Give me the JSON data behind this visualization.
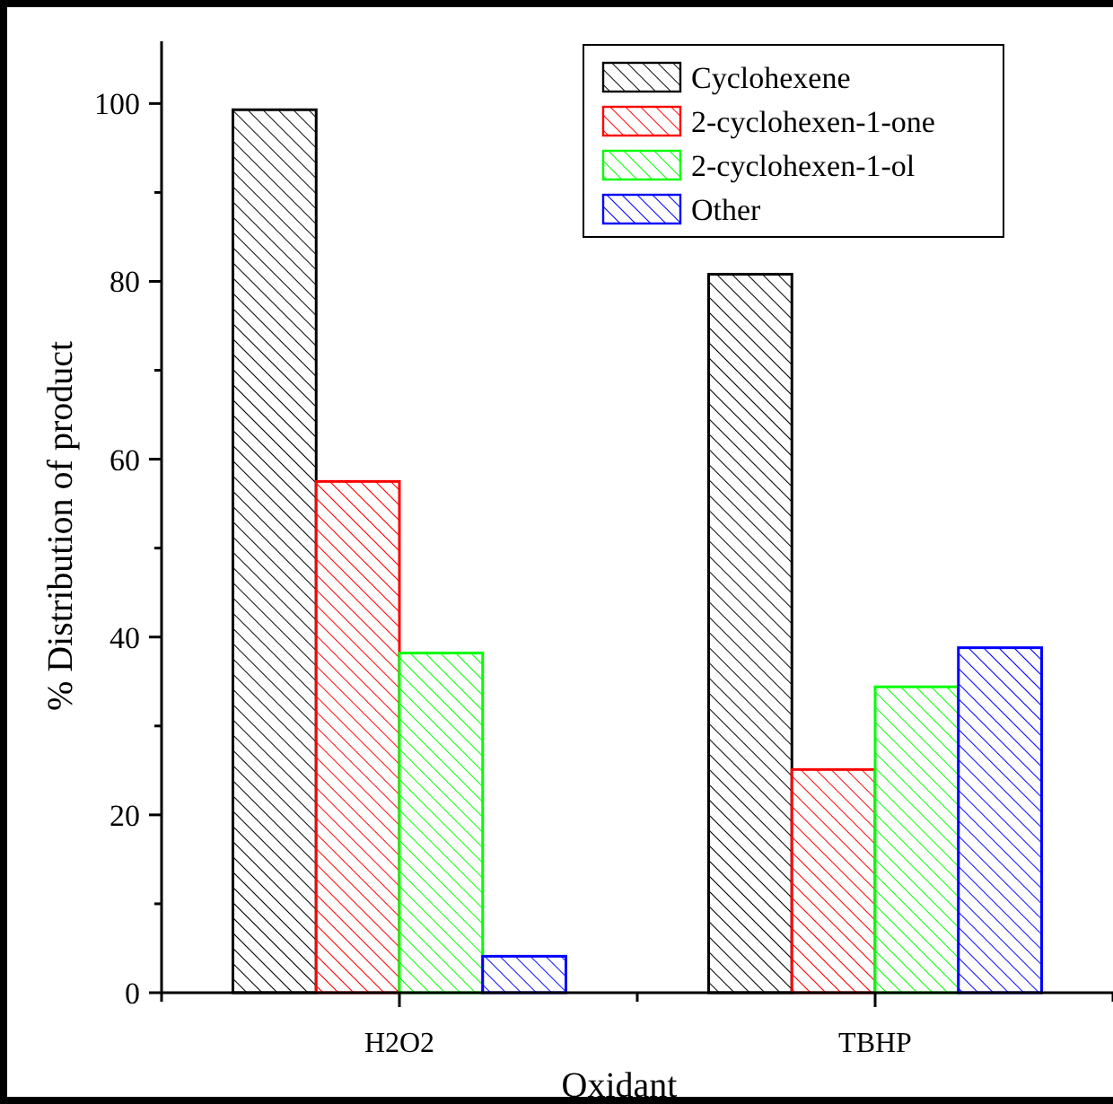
{
  "chart_data": {
    "type": "bar",
    "xlabel": "Oxidant",
    "ylabel": "% Distribution of product",
    "categories": [
      "H2O2",
      "TBHP"
    ],
    "series": [
      {
        "name": "Cyclohexene",
        "color": "#000000",
        "values": [
          99.3,
          80.8
        ]
      },
      {
        "name": "2-cyclohexen-1-one",
        "color": "#ff0000",
        "values": [
          57.5,
          25.1
        ]
      },
      {
        "name": "2-cyclohexen-1-ol",
        "color": "#00ff00",
        "values": [
          38.2,
          34.4
        ]
      },
      {
        "name": "Other",
        "color": "#0000ff",
        "values": [
          4.1,
          38.8
        ]
      }
    ],
    "ylim": [
      0,
      107
    ],
    "yticks": [
      0,
      {
        "value": 10,
        "label": null
      },
      20,
      {
        "value": 30,
        "label": null
      },
      40,
      {
        "value": 50,
        "label": null
      },
      60,
      {
        "value": 70,
        "label": null
      },
      80,
      {
        "value": 90,
        "label": null
      },
      100
    ],
    "legend": "top right",
    "grid": false
  }
}
